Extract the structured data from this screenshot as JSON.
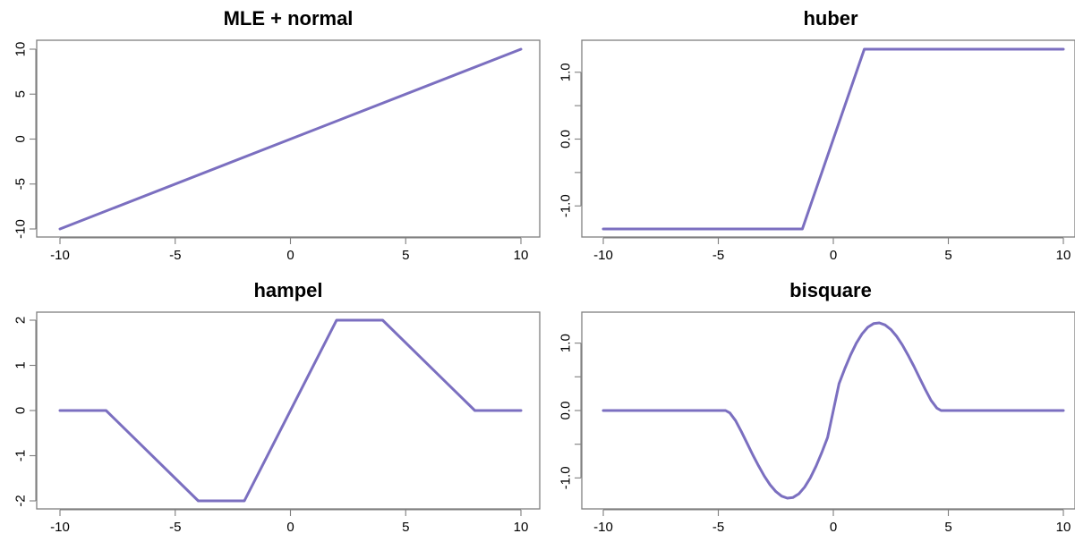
{
  "colors": {
    "line": "#7b6fc0",
    "frame": "#7f7f7f"
  },
  "chart_data": [
    {
      "type": "line",
      "title": "MLE + normal",
      "xlim": [
        -10,
        10
      ],
      "ylim": [
        -10,
        10
      ],
      "x_ticks": [
        -10,
        -5,
        0,
        5,
        10
      ],
      "y_ticks": [
        -10,
        -5,
        0,
        5,
        10
      ],
      "x_tick_labels": [
        "-10",
        "-5",
        "0",
        "5",
        "10"
      ],
      "y_tick_labels": [
        "-10",
        "-5",
        "0",
        "5",
        "10"
      ],
      "series": [
        {
          "x": [
            -10,
            10
          ],
          "y": [
            -10,
            10
          ]
        }
      ]
    },
    {
      "type": "line",
      "title": "huber",
      "xlim": [
        -10,
        10
      ],
      "ylim": [
        -1.345,
        1.345
      ],
      "x_ticks": [
        -10,
        -5,
        0,
        5,
        10
      ],
      "y_ticks": [
        -1.5,
        -1.0,
        -0.5,
        0,
        0.5,
        1.0,
        1.5
      ],
      "x_tick_labels": [
        "-10",
        "-5",
        "0",
        "5",
        "10"
      ],
      "y_tick_labels": [
        "",
        "-1.0",
        "",
        "0.0",
        "",
        "1.0",
        ""
      ],
      "series": [
        {
          "x": [
            -10,
            -1.345,
            1.345,
            10
          ],
          "y": [
            -1.345,
            -1.345,
            1.345,
            1.345
          ]
        }
      ]
    },
    {
      "type": "line",
      "title": "hampel",
      "xlim": [
        -10,
        10
      ],
      "ylim": [
        -2,
        2
      ],
      "x_ticks": [
        -10,
        -5,
        0,
        5,
        10
      ],
      "y_ticks": [
        -2,
        -1,
        0,
        1,
        2
      ],
      "x_tick_labels": [
        "-10",
        "-5",
        "0",
        "5",
        "10"
      ],
      "y_tick_labels": [
        "-2",
        "-1",
        "0",
        "1",
        "2"
      ],
      "series": [
        {
          "x": [
            -10,
            -8,
            -4,
            -2,
            2,
            4,
            8,
            10
          ],
          "y": [
            0,
            0,
            -2,
            -2,
            2,
            2,
            0,
            0
          ]
        }
      ]
    },
    {
      "type": "line",
      "title": "bisquare",
      "xlim": [
        -10,
        10
      ],
      "ylim": [
        -1.34,
        1.34
      ],
      "x_ticks": [
        -10,
        -5,
        0,
        5,
        10
      ],
      "y_ticks": [
        -1.5,
        -1.0,
        -0.5,
        0,
        0.5,
        1.0,
        1.5
      ],
      "x_tick_labels": [
        "-10",
        "-5",
        "0",
        "5",
        "10"
      ],
      "y_tick_labels": [
        "",
        "-1.0",
        "",
        "0.0",
        "",
        "1.0",
        ""
      ],
      "series": [
        {
          "x": [
            -10,
            -4.685,
            -4.5,
            -4.25,
            -4.0,
            -3.75,
            -3.5,
            -3.25,
            -3.0,
            -2.75,
            -2.5,
            -2.25,
            -2.0,
            -1.75,
            -1.5,
            -1.25,
            -1.0,
            -0.75,
            -0.5,
            -0.25,
            0,
            0.25,
            0.5,
            0.75,
            1.0,
            1.25,
            1.5,
            1.75,
            2.0,
            2.25,
            2.5,
            2.75,
            3.0,
            3.25,
            3.5,
            3.75,
            4.0,
            4.25,
            4.5,
            4.685,
            10
          ],
          "y": [
            0,
            0,
            -0.0356,
            -0.1503,
            -0.3098,
            -0.4829,
            -0.6563,
            -0.8215,
            -0.9727,
            -1.1009,
            -1.2016,
            -1.2697,
            -1.3004,
            -1.2895,
            -1.2349,
            -1.1372,
            -0.999,
            -0.825,
            -0.623,
            -0.3988,
            0,
            0.3988,
            0.623,
            0.825,
            0.999,
            1.1372,
            1.2349,
            1.2895,
            1.3004,
            1.2697,
            1.2016,
            1.1009,
            0.9727,
            0.8215,
            0.6563,
            0.4829,
            0.3098,
            0.1503,
            0.0356,
            0,
            0
          ]
        }
      ]
    }
  ]
}
